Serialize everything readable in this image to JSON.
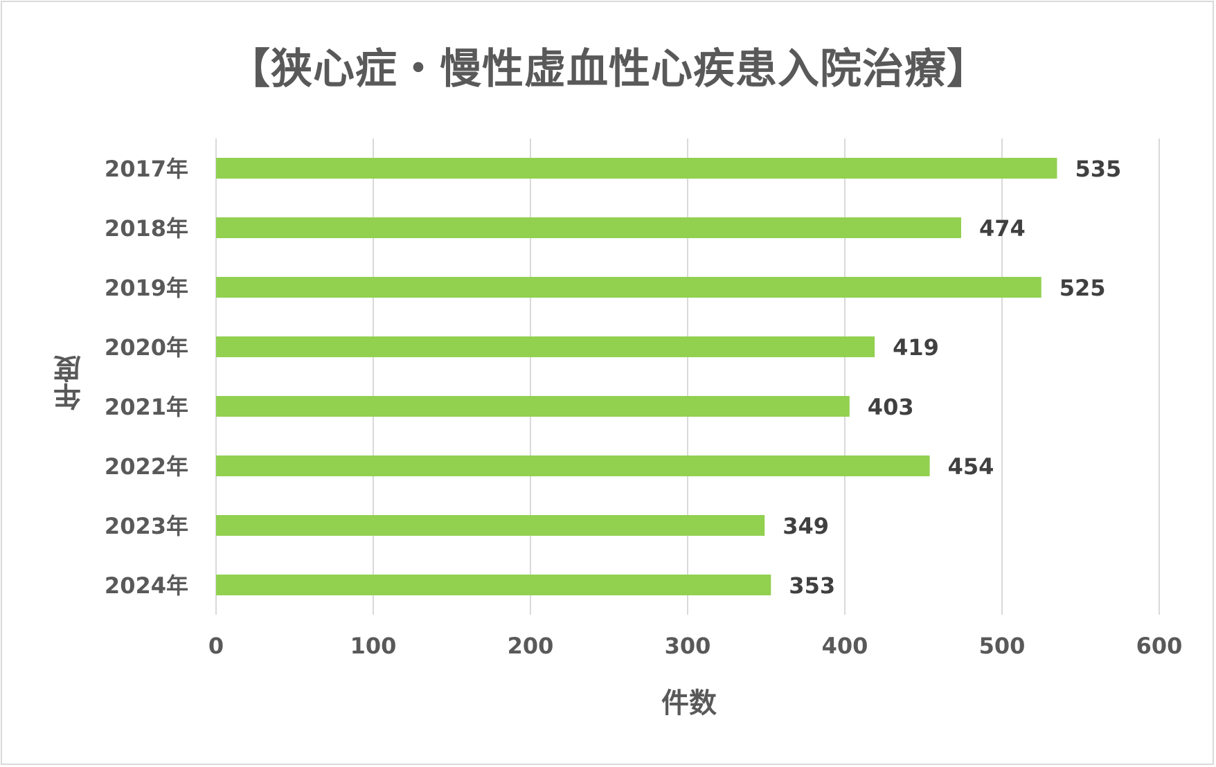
{
  "chart_data": {
    "type": "bar",
    "orientation": "horizontal",
    "title": "【狭心症・慢性虚血性心疾患入院治療】",
    "xlabel": "件数",
    "ylabel": "年度",
    "categories": [
      "2017年",
      "2018年",
      "2019年",
      "2020年",
      "2021年",
      "2022年",
      "2023年",
      "2024年"
    ],
    "values": [
      535,
      474,
      525,
      419,
      403,
      454,
      349,
      353
    ],
    "xlim": [
      0,
      600
    ],
    "xticks": [
      0,
      100,
      200,
      300,
      400,
      500,
      600
    ],
    "grid": "vertical",
    "legend": "none",
    "bar_color": "#92d050",
    "data_labels": true
  }
}
